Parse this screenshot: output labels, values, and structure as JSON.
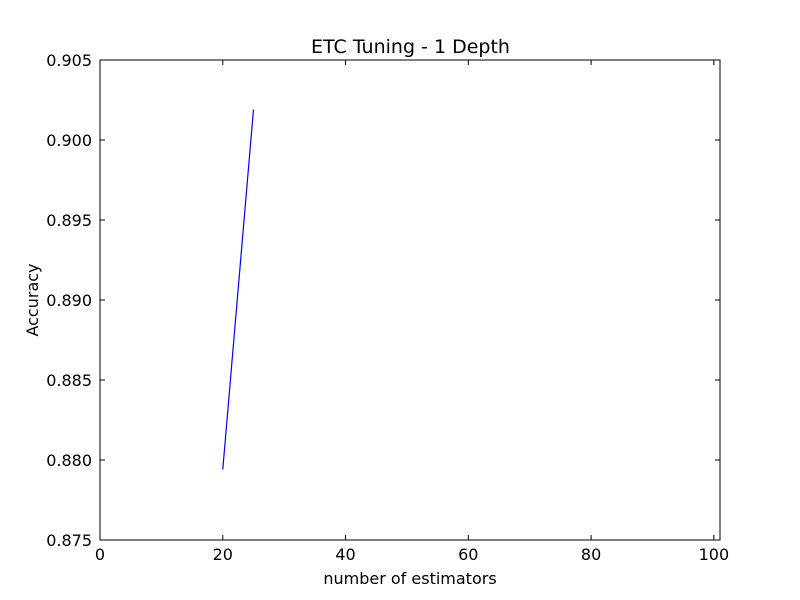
{
  "chart_data": {
    "type": "line",
    "title": "ETC Tuning - 1 Depth",
    "xlabel": "number of estimators",
    "ylabel": "Accuracy",
    "xlim": [
      0,
      101
    ],
    "ylim": [
      0.875,
      0.905
    ],
    "xticks": [
      "0",
      "20",
      "40",
      "60",
      "80",
      "100"
    ],
    "yticks": [
      "0.875",
      "0.880",
      "0.885",
      "0.890",
      "0.895",
      "0.900",
      "0.905"
    ],
    "grid": false,
    "series": [
      {
        "color": "#0000ff",
        "x": [
          20,
          25
        ],
        "y": [
          0.8794,
          0.9019
        ]
      }
    ]
  }
}
